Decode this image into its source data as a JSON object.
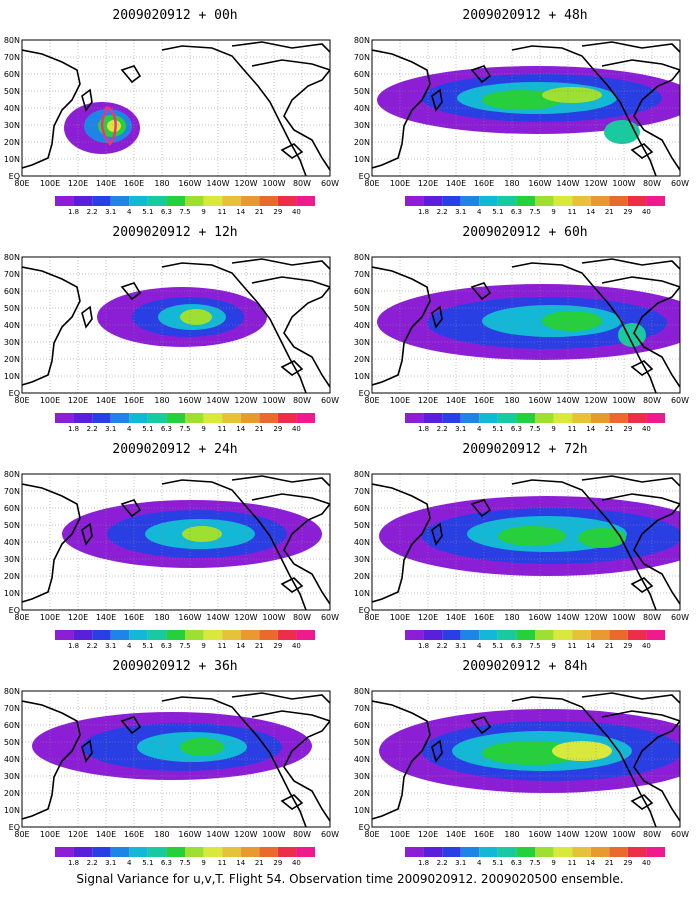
{
  "footer": "Signal Variance for u,v,T. Flight 54. Observation time 2009020912. 2009020500 ensemble.",
  "map_axes": {
    "lat_labels": [
      "80N",
      "70N",
      "60N",
      "50N",
      "40N",
      "30N",
      "20N",
      "10N",
      "EQ"
    ],
    "lon_labels": [
      "80E",
      "100E",
      "120E",
      "140E",
      "160E",
      "180",
      "160W",
      "140W",
      "120W",
      "100W",
      "80W",
      "60W"
    ]
  },
  "colorbar": {
    "levels": [
      "1.8",
      "2.2",
      "3.1",
      "4",
      "5.1",
      "6.3",
      "7.5",
      "9",
      "11",
      "14",
      "21",
      "29",
      "40"
    ],
    "colors": [
      "#8c1fd6",
      "#5a20d9",
      "#2a3fe3",
      "#1e85e6",
      "#13b8d6",
      "#19c9a0",
      "#26cf3c",
      "#9ee032",
      "#d8e83c",
      "#e6c23a",
      "#e89a30",
      "#ea6a2c",
      "#ec2e4a",
      "#ef1a8e"
    ]
  },
  "panels": [
    {
      "title": "2009020912 + 00h"
    },
    {
      "title": "2009020912 + 48h"
    },
    {
      "title": "2009020912 + 12h"
    },
    {
      "title": "2009020912 + 60h"
    },
    {
      "title": "2009020912 + 24h"
    },
    {
      "title": "2009020912 + 72h"
    },
    {
      "title": "2009020912 + 36h"
    },
    {
      "title": "2009020912 + 84h"
    }
  ]
}
